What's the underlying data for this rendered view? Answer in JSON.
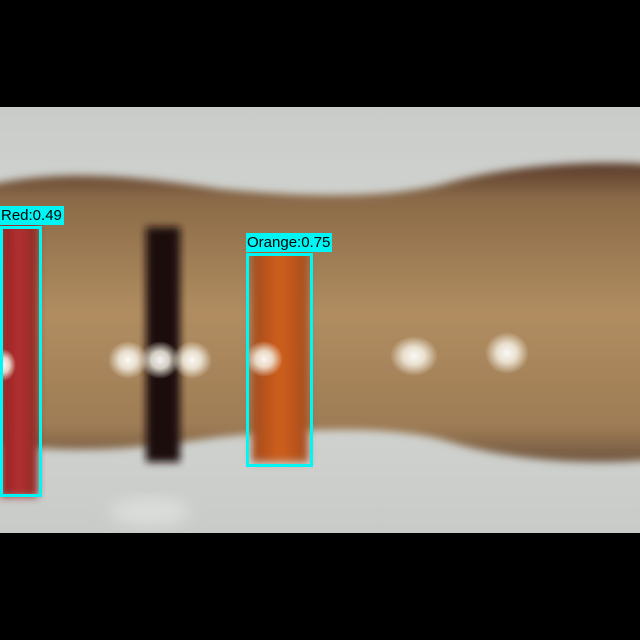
{
  "image": {
    "subject": "resistor-close-up",
    "colors": {
      "letterbox": "#000000",
      "background": "#cfd2cf",
      "body": "#a98457",
      "band_red": "#a3282a",
      "band_black": "#1e0f0f",
      "band_orange": "#c4561c",
      "box_outline": "#00f5f5"
    }
  },
  "detections": [
    {
      "class": "Red",
      "score": 0.49,
      "label": "Red:0.49"
    },
    {
      "class": "Orange",
      "score": 0.75,
      "label": "Orange:0.75"
    }
  ]
}
